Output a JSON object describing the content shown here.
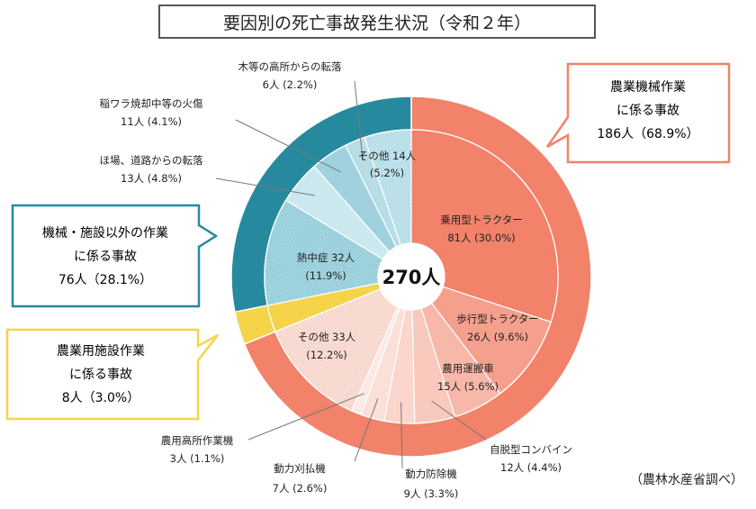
{
  "title": "要因別の死亡事故発生状況（令和２年）",
  "source": "（農林水産省調べ）",
  "center_label": "270人",
  "groups": [
    {
      "key": "machine",
      "line1": "農業機械作業",
      "line2": "に係る事故",
      "line3": "186人（68.9%）",
      "color": "#f2826a"
    },
    {
      "key": "other",
      "line1": "機械・施設以外の作業",
      "line2": "に係る事故",
      "line3": "76人（28.1%）",
      "color": "#27899e"
    },
    {
      "key": "facility",
      "line1": "農業用施設作業",
      "line2": "に係る事故",
      "line3": "8人（3.0%）",
      "color": "#f5d44a"
    }
  ],
  "inner_labels": [
    {
      "l1": "乗用型トラクター",
      "l2": "81人 (30.0%)"
    },
    {
      "l1": "歩行型トラクター",
      "l2": "26人 (9.6%)"
    },
    {
      "l1": "農用運搬車",
      "l2": "15人 (5.6%)"
    },
    {
      "l1": "その他 33人",
      "l2": "(12.2%)"
    },
    {
      "l1": "熱中症 32人",
      "l2": "(11.9%)"
    },
    {
      "l1": "その他 14人",
      "l2": "(5.2%)"
    }
  ],
  "outer_labels": [
    {
      "l1": "自脱型コンバイン",
      "l2": "12人 (4.4%)"
    },
    {
      "l1": "動力防除機",
      "l2": "9人 (3.3%)"
    },
    {
      "l1": "動力刈払機",
      "l2": "7人 (2.6%)"
    },
    {
      "l1": "農用高所作業機",
      "l2": "3人 (1.1%)"
    },
    {
      "l1": "ほ場、道路からの転落",
      "l2": "13人 (4.8%)"
    },
    {
      "l1": "稲ワラ焼却中等の火傷",
      "l2": "11人 (4.1%)"
    },
    {
      "l1": "木等の高所からの転落",
      "l2": "6人 (2.2%)"
    }
  ],
  "chart_data": {
    "type": "pie",
    "title": "要因別の死亡事故発生状況（令和２年）",
    "total": 270,
    "outer_ring": [
      {
        "name": "農業機械作業に係る事故",
        "value": 186,
        "percent": 68.9
      },
      {
        "name": "農業用施設作業に係る事故",
        "value": 8,
        "percent": 3.0
      },
      {
        "name": "機械・施設以外の作業に係る事故",
        "value": 76,
        "percent": 28.1
      }
    ],
    "inner_ring": [
      {
        "name": "乗用型トラクター",
        "value": 81,
        "percent": 30.0,
        "group": "machine"
      },
      {
        "name": "歩行型トラクター",
        "value": 26,
        "percent": 9.6,
        "group": "machine"
      },
      {
        "name": "農用運搬車",
        "value": 15,
        "percent": 5.6,
        "group": "machine"
      },
      {
        "name": "自脱型コンバイン",
        "value": 12,
        "percent": 4.4,
        "group": "machine"
      },
      {
        "name": "動力防除機",
        "value": 9,
        "percent": 3.3,
        "group": "machine"
      },
      {
        "name": "動力刈払機",
        "value": 7,
        "percent": 2.6,
        "group": "machine"
      },
      {
        "name": "農用高所作業機",
        "value": 3,
        "percent": 1.1,
        "group": "machine"
      },
      {
        "name": "その他",
        "value": 33,
        "percent": 12.2,
        "group": "machine"
      },
      {
        "name": "農業用施設作業",
        "value": 8,
        "percent": 3.0,
        "group": "facility"
      },
      {
        "name": "熱中症",
        "value": 32,
        "percent": 11.9,
        "group": "other"
      },
      {
        "name": "ほ場、道路からの転落",
        "value": 13,
        "percent": 4.8,
        "group": "other"
      },
      {
        "name": "稲ワラ焼却中等の火傷",
        "value": 11,
        "percent": 4.1,
        "group": "other"
      },
      {
        "name": "木等の高所からの転落",
        "value": 6,
        "percent": 2.2,
        "group": "other"
      },
      {
        "name": "その他",
        "value": 14,
        "percent": 5.2,
        "group": "other"
      }
    ]
  }
}
